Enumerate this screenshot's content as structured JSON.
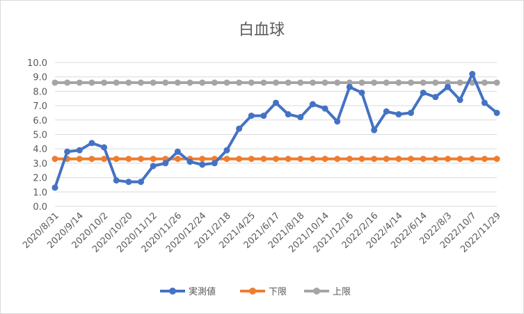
{
  "chart_data": {
    "type": "line",
    "title": "白血球",
    "xlabel": "",
    "ylabel": "",
    "ylim": [
      0,
      10
    ],
    "yticks": [
      "0.0",
      "1.0",
      "2.0",
      "3.0",
      "4.0",
      "5.0",
      "6.0",
      "7.0",
      "8.0",
      "9.0",
      "10.0"
    ],
    "x_tick_labels": [
      "2020/8/31",
      "2020/9/14",
      "2020/10/2",
      "2020/10/20",
      "2020/11/12",
      "2020/11/26",
      "2020/12/24",
      "2021/2/18",
      "2021/4/25",
      "2021/6/17",
      "2021/8/18",
      "2021/10/14",
      "2021/12/16",
      "2022/2/16",
      "2022/4/14",
      "2022/6/14",
      "2022/8/3",
      "2022/10/7",
      "2022/11/29"
    ],
    "grid": "horizontal",
    "legend_position": "bottom",
    "series": [
      {
        "name": "実測値",
        "color": "#4472c4",
        "values": [
          1.3,
          3.8,
          3.9,
          4.4,
          4.1,
          1.8,
          1.7,
          1.7,
          2.8,
          3.0,
          3.8,
          3.1,
          2.9,
          3.0,
          3.9,
          5.4,
          6.3,
          6.3,
          7.2,
          6.4,
          6.2,
          7.1,
          6.8,
          5.9,
          8.3,
          7.9,
          5.3,
          6.6,
          6.4,
          6.5,
          7.9,
          7.6,
          8.3,
          7.4,
          9.2,
          7.2,
          6.5
        ]
      },
      {
        "name": "下限",
        "color": "#ed7d31",
        "values": [
          3.3,
          3.3,
          3.3,
          3.3,
          3.3,
          3.3,
          3.3,
          3.3,
          3.3,
          3.3,
          3.3,
          3.3,
          3.3,
          3.3,
          3.3,
          3.3,
          3.3,
          3.3,
          3.3,
          3.3,
          3.3,
          3.3,
          3.3,
          3.3,
          3.3,
          3.3,
          3.3,
          3.3,
          3.3,
          3.3,
          3.3,
          3.3,
          3.3,
          3.3,
          3.3,
          3.3,
          3.3
        ]
      },
      {
        "name": "上限",
        "color": "#a5a5a5",
        "values": [
          8.6,
          8.6,
          8.6,
          8.6,
          8.6,
          8.6,
          8.6,
          8.6,
          8.6,
          8.6,
          8.6,
          8.6,
          8.6,
          8.6,
          8.6,
          8.6,
          8.6,
          8.6,
          8.6,
          8.6,
          8.6,
          8.6,
          8.6,
          8.6,
          8.6,
          8.6,
          8.6,
          8.6,
          8.6,
          8.6,
          8.6,
          8.6,
          8.6,
          8.6,
          8.6,
          8.6,
          8.6
        ]
      }
    ]
  }
}
